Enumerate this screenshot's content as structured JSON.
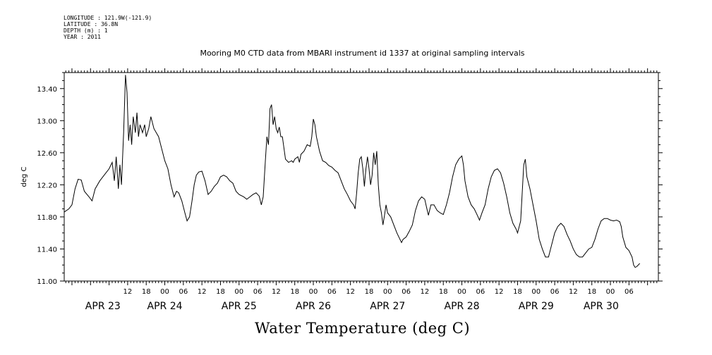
{
  "header_lines": [
    "LONGITUDE : 121.9W(-121.9)",
    "LATITUDE : 36.8N",
    "DEPTH (m) : 1",
    "YEAR : 2011"
  ],
  "chart_data": {
    "type": "line",
    "title": "Mooring M0 CTD data from MBARI instrument id 1337 at original sampling intervals",
    "xlabel": "Water Temperature (deg C)",
    "ylabel": "deg C",
    "ylim": [
      11.0,
      13.6
    ],
    "yticks": [
      11.0,
      11.4,
      11.8,
      12.2,
      12.6,
      13.0,
      13.4
    ],
    "ytick_labels": [
      "11.00",
      "11.40",
      "11.80",
      "12.20",
      "12.60",
      "13.00",
      "13.40"
    ],
    "x_unit": "hours since APR 23 00:00",
    "xlim": [
      -8.5,
      183.5
    ],
    "hour_ticks": [
      {
        "h": 12,
        "label": "12"
      },
      {
        "h": 18,
        "label": "18"
      },
      {
        "h": 24,
        "label": "00"
      },
      {
        "h": 30,
        "label": "06"
      },
      {
        "h": 36,
        "label": "12"
      },
      {
        "h": 42,
        "label": "18"
      },
      {
        "h": 48,
        "label": "00"
      },
      {
        "h": 54,
        "label": "06"
      },
      {
        "h": 60,
        "label": "12"
      },
      {
        "h": 66,
        "label": "18"
      },
      {
        "h": 72,
        "label": "00"
      },
      {
        "h": 78,
        "label": "06"
      },
      {
        "h": 84,
        "label": "12"
      },
      {
        "h": 90,
        "label": "18"
      },
      {
        "h": 96,
        "label": "00"
      },
      {
        "h": 102,
        "label": "06"
      },
      {
        "h": 108,
        "label": "12"
      },
      {
        "h": 114,
        "label": "18"
      },
      {
        "h": 120,
        "label": "00"
      },
      {
        "h": 126,
        "label": "06"
      },
      {
        "h": 132,
        "label": "12"
      },
      {
        "h": 138,
        "label": "18"
      },
      {
        "h": 144,
        "label": "00"
      },
      {
        "h": 150,
        "label": "06"
      },
      {
        "h": 156,
        "label": "12"
      },
      {
        "h": 162,
        "label": "18"
      },
      {
        "h": 168,
        "label": "00"
      },
      {
        "h": 174,
        "label": "06"
      }
    ],
    "day_labels": [
      {
        "h": 4,
        "label": "APR 23"
      },
      {
        "h": 24,
        "label": "APR 24"
      },
      {
        "h": 48,
        "label": "APR 25"
      },
      {
        "h": 72,
        "label": "APR 26"
      },
      {
        "h": 96,
        "label": "APR 27"
      },
      {
        "h": 120,
        "label": "APR 28"
      },
      {
        "h": 144,
        "label": "APR 29"
      },
      {
        "h": 165,
        "label": "APR 30"
      }
    ],
    "series": [
      {
        "color": "#000000",
        "points": [
          [
            -8.5,
            11.86
          ],
          [
            -7.0,
            11.9
          ],
          [
            -6.0,
            11.95
          ],
          [
            -5.0,
            12.15
          ],
          [
            -4.0,
            12.27
          ],
          [
            -3.0,
            12.26
          ],
          [
            -2.0,
            12.12
          ],
          [
            -0.5,
            12.05
          ],
          [
            0.5,
            12.0
          ],
          [
            1.5,
            12.15
          ],
          [
            3.0,
            12.25
          ],
          [
            5.0,
            12.35
          ],
          [
            6.0,
            12.4
          ],
          [
            7.0,
            12.48
          ],
          [
            7.7,
            12.25
          ],
          [
            8.3,
            12.55
          ],
          [
            9.0,
            12.15
          ],
          [
            9.5,
            12.45
          ],
          [
            10.0,
            12.2
          ],
          [
            10.7,
            12.85
          ],
          [
            11.3,
            13.57
          ],
          [
            11.8,
            13.35
          ],
          [
            12.3,
            12.75
          ],
          [
            12.8,
            12.95
          ],
          [
            13.3,
            12.7
          ],
          [
            13.8,
            13.05
          ],
          [
            14.5,
            12.85
          ],
          [
            15.0,
            13.1
          ],
          [
            15.5,
            12.8
          ],
          [
            16.0,
            12.95
          ],
          [
            16.8,
            12.85
          ],
          [
            17.5,
            12.95
          ],
          [
            18.0,
            12.8
          ],
          [
            18.8,
            12.9
          ],
          [
            19.5,
            13.05
          ],
          [
            20.5,
            12.9
          ],
          [
            22.0,
            12.8
          ],
          [
            23.0,
            12.65
          ],
          [
            24.0,
            12.5
          ],
          [
            25.0,
            12.4
          ],
          [
            26.0,
            12.2
          ],
          [
            27.0,
            12.05
          ],
          [
            27.8,
            12.12
          ],
          [
            28.5,
            12.1
          ],
          [
            29.5,
            12.0
          ],
          [
            30.5,
            11.85
          ],
          [
            31.2,
            11.75
          ],
          [
            32.0,
            11.8
          ],
          [
            32.8,
            12.0
          ],
          [
            33.5,
            12.2
          ],
          [
            34.2,
            12.32
          ],
          [
            35.0,
            12.36
          ],
          [
            36.0,
            12.37
          ],
          [
            37.0,
            12.25
          ],
          [
            38.0,
            12.08
          ],
          [
            39.0,
            12.12
          ],
          [
            40.0,
            12.18
          ],
          [
            41.0,
            12.22
          ],
          [
            42.0,
            12.3
          ],
          [
            43.0,
            12.32
          ],
          [
            44.0,
            12.3
          ],
          [
            45.0,
            12.25
          ],
          [
            46.0,
            12.22
          ],
          [
            47.0,
            12.12
          ],
          [
            48.0,
            12.08
          ],
          [
            49.5,
            12.05
          ],
          [
            50.5,
            12.02
          ],
          [
            51.5,
            12.05
          ],
          [
            52.5,
            12.08
          ],
          [
            53.5,
            12.1
          ],
          [
            54.5,
            12.06
          ],
          [
            55.2,
            11.95
          ],
          [
            55.8,
            12.05
          ],
          [
            56.5,
            12.5
          ],
          [
            57.0,
            12.8
          ],
          [
            57.5,
            12.7
          ],
          [
            58.0,
            13.15
          ],
          [
            58.5,
            13.2
          ],
          [
            59.0,
            12.95
          ],
          [
            59.5,
            13.05
          ],
          [
            60.0,
            12.9
          ],
          [
            60.5,
            12.85
          ],
          [
            61.0,
            12.92
          ],
          [
            61.5,
            12.8
          ],
          [
            62.0,
            12.8
          ],
          [
            63.0,
            12.52
          ],
          [
            64.0,
            12.48
          ],
          [
            65.0,
            12.5
          ],
          [
            65.5,
            12.48
          ],
          [
            66.0,
            12.52
          ],
          [
            67.0,
            12.55
          ],
          [
            67.5,
            12.48
          ],
          [
            68.0,
            12.58
          ],
          [
            69.0,
            12.62
          ],
          [
            70.0,
            12.7
          ],
          [
            71.0,
            12.68
          ],
          [
            71.5,
            12.8
          ],
          [
            72.0,
            13.02
          ],
          [
            72.5,
            12.95
          ],
          [
            73.0,
            12.8
          ],
          [
            74.0,
            12.62
          ],
          [
            75.0,
            12.5
          ],
          [
            76.0,
            12.48
          ],
          [
            77.0,
            12.44
          ],
          [
            78.0,
            12.42
          ],
          [
            79.0,
            12.38
          ],
          [
            80.0,
            12.35
          ],
          [
            81.0,
            12.25
          ],
          [
            82.0,
            12.15
          ],
          [
            83.0,
            12.08
          ],
          [
            84.0,
            12.0
          ],
          [
            85.0,
            11.95
          ],
          [
            85.5,
            11.9
          ],
          [
            86.0,
            12.1
          ],
          [
            86.5,
            12.35
          ],
          [
            87.0,
            12.52
          ],
          [
            87.5,
            12.55
          ],
          [
            88.0,
            12.4
          ],
          [
            88.5,
            12.18
          ],
          [
            89.0,
            12.4
          ],
          [
            89.5,
            12.55
          ],
          [
            90.0,
            12.4
          ],
          [
            90.5,
            12.2
          ],
          [
            91.0,
            12.32
          ],
          [
            91.5,
            12.6
          ],
          [
            92.0,
            12.45
          ],
          [
            92.5,
            12.62
          ],
          [
            93.0,
            12.2
          ],
          [
            93.5,
            11.95
          ],
          [
            94.0,
            11.85
          ],
          [
            94.5,
            11.7
          ],
          [
            95.0,
            11.82
          ],
          [
            95.5,
            11.95
          ],
          [
            96.0,
            11.85
          ],
          [
            97.0,
            11.8
          ],
          [
            98.0,
            11.7
          ],
          [
            99.0,
            11.6
          ],
          [
            100.0,
            11.52
          ],
          [
            100.5,
            11.48
          ],
          [
            101.0,
            11.52
          ],
          [
            102.0,
            11.55
          ],
          [
            103.0,
            11.62
          ],
          [
            104.0,
            11.7
          ],
          [
            105.0,
            11.88
          ],
          [
            106.0,
            12.0
          ],
          [
            107.0,
            12.05
          ],
          [
            108.0,
            12.02
          ],
          [
            108.7,
            11.9
          ],
          [
            109.2,
            11.82
          ],
          [
            110.0,
            11.95
          ],
          [
            111.0,
            11.95
          ],
          [
            112.0,
            11.88
          ],
          [
            113.0,
            11.85
          ],
          [
            114.0,
            11.83
          ],
          [
            115.0,
            11.95
          ],
          [
            116.0,
            12.1
          ],
          [
            117.0,
            12.3
          ],
          [
            118.0,
            12.45
          ],
          [
            119.0,
            12.52
          ],
          [
            120.0,
            12.56
          ],
          [
            120.5,
            12.45
          ],
          [
            121.0,
            12.25
          ],
          [
            122.0,
            12.05
          ],
          [
            123.0,
            11.95
          ],
          [
            124.0,
            11.9
          ],
          [
            125.0,
            11.82
          ],
          [
            125.7,
            11.76
          ],
          [
            126.5,
            11.85
          ],
          [
            127.5,
            11.95
          ],
          [
            128.5,
            12.15
          ],
          [
            129.5,
            12.3
          ],
          [
            130.5,
            12.38
          ],
          [
            131.5,
            12.4
          ],
          [
            132.5,
            12.35
          ],
          [
            133.5,
            12.22
          ],
          [
            134.5,
            12.05
          ],
          [
            135.5,
            11.85
          ],
          [
            136.5,
            11.72
          ],
          [
            137.5,
            11.65
          ],
          [
            138.0,
            11.6
          ],
          [
            139.0,
            11.75
          ],
          [
            139.5,
            12.1
          ],
          [
            140.0,
            12.45
          ],
          [
            140.5,
            12.52
          ],
          [
            141.0,
            12.3
          ],
          [
            142.0,
            12.15
          ],
          [
            143.0,
            11.95
          ],
          [
            144.0,
            11.75
          ],
          [
            145.0,
            11.52
          ],
          [
            146.0,
            11.4
          ],
          [
            147.0,
            11.3
          ],
          [
            148.0,
            11.3
          ],
          [
            149.0,
            11.45
          ],
          [
            150.0,
            11.6
          ],
          [
            151.0,
            11.68
          ],
          [
            152.0,
            11.72
          ],
          [
            153.0,
            11.68
          ],
          [
            154.0,
            11.58
          ],
          [
            155.0,
            11.5
          ],
          [
            156.0,
            11.4
          ],
          [
            157.0,
            11.33
          ],
          [
            158.0,
            11.3
          ],
          [
            159.0,
            11.3
          ],
          [
            160.0,
            11.35
          ],
          [
            161.0,
            11.4
          ],
          [
            162.0,
            11.42
          ],
          [
            163.0,
            11.52
          ],
          [
            164.0,
            11.65
          ],
          [
            165.0,
            11.75
          ],
          [
            166.0,
            11.78
          ],
          [
            167.0,
            11.78
          ],
          [
            168.0,
            11.76
          ],
          [
            169.0,
            11.75
          ],
          [
            170.0,
            11.76
          ],
          [
            171.0,
            11.74
          ],
          [
            171.5,
            11.68
          ],
          [
            172.0,
            11.55
          ],
          [
            173.0,
            11.42
          ],
          [
            174.0,
            11.38
          ],
          [
            175.0,
            11.3
          ],
          [
            175.5,
            11.2
          ],
          [
            176.0,
            11.17
          ],
          [
            176.5,
            11.18
          ],
          [
            177.0,
            11.2
          ],
          [
            177.5,
            11.22
          ]
        ]
      }
    ]
  }
}
